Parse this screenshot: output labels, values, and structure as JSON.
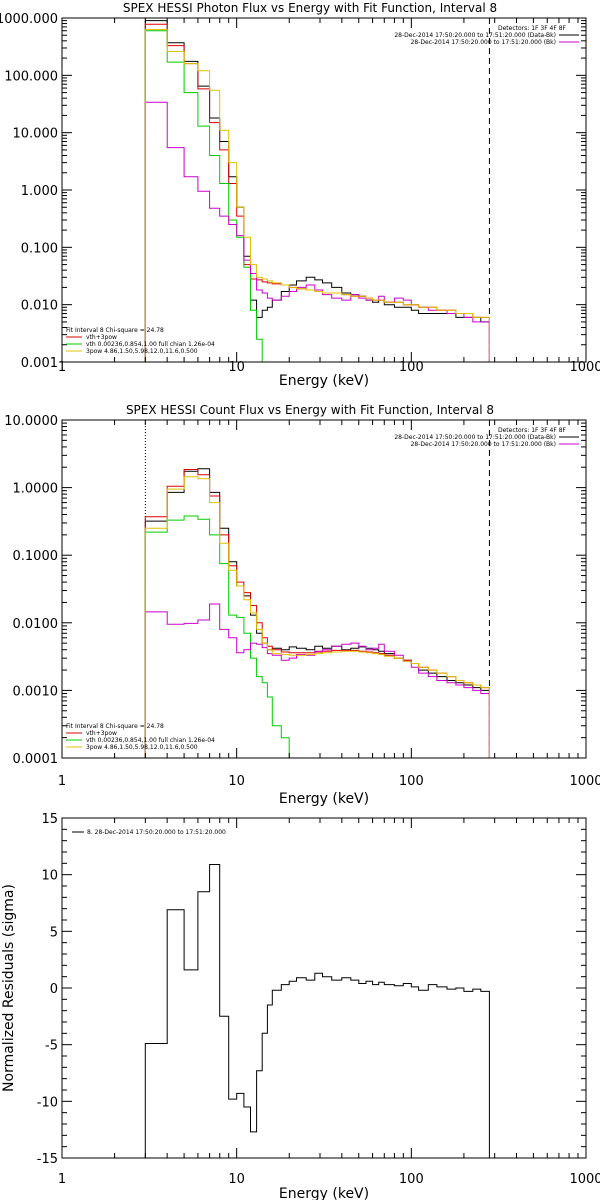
{
  "chart_data": [
    {
      "type": "line",
      "title": "SPEX HESSI Photon Flux vs Energy with Fit Function, Interval 8",
      "xlabel": "Energy (keV)",
      "ylabel": "",
      "xscale": "log",
      "yscale": "log",
      "xlim": [
        1,
        1000
      ],
      "ylim": [
        0.001,
        1000
      ],
      "x_tick_labels": [
        "1",
        "10",
        "100",
        "1000"
      ],
      "y_tick_labels": [
        "0.001",
        "0.010",
        "0.100",
        "1.000",
        "10.000",
        "100.000",
        "1000.000"
      ],
      "vlines": [
        {
          "x": 3,
          "style": "dotted"
        },
        {
          "x": 280,
          "style": "dashed"
        }
      ],
      "legend_top_right": [
        "Detectors: 1F 3F 4F 8F",
        "28-Dec-2014 17:50:20.000 to 17:51:20.000 (Data-Bk)",
        "28-Dec-2014 17:50:20.000 to 17:51:20.000 (Bk)"
      ],
      "legend_bottom_left": [
        "Fit Interval 8   Chi-square = 24.78",
        "vth+3pow",
        "vth 0.00236,0.854,1.00  full chian 1.26e-04",
        "3pow 4.86,1.50,5.98,12.0,11.6,0.500"
      ],
      "edges": [
        3,
        4,
        5,
        6,
        7,
        8,
        9,
        10,
        11,
        12,
        13,
        14,
        15,
        16,
        18,
        20,
        22,
        25,
        28,
        31,
        35,
        40,
        45,
        50,
        55,
        60,
        65,
        70,
        80,
        90,
        100,
        110,
        125,
        140,
        160,
        180,
        200,
        225,
        250,
        280
      ],
      "series": [
        {
          "name": "Data-Bk",
          "color": "#000000",
          "values": [
            900,
            370,
            175,
            65,
            18,
            7,
            1.7,
            0.5,
            0.07,
            0.012,
            0.006,
            0.008,
            0.009,
            0.012,
            0.017,
            0.022,
            0.026,
            0.03,
            0.027,
            0.024,
            0.02,
            0.016,
            0.015,
            0.014,
            0.012,
            0.011,
            0.012,
            0.01,
            0.009,
            0.009,
            0.008,
            0.007,
            0.007,
            0.007,
            0.007,
            0.006,
            0.006,
            0.006,
            0.005
          ]
        },
        {
          "name": "vth+3pow",
          "color": "#dd0000",
          "values": [
            780,
            330,
            160,
            58,
            15,
            5,
            1.3,
            0.35,
            0.05,
            0.028,
            0.027,
            0.025,
            0.024,
            0.023,
            0.022,
            0.02,
            0.019,
            0.018,
            0.017,
            0.016,
            0.016,
            0.015,
            0.014,
            0.014,
            0.013,
            0.012,
            0.012,
            0.011,
            0.011,
            0.01,
            0.01,
            0.009,
            0.009,
            0.008,
            0.008,
            0.007,
            0.007,
            0.006,
            0.006
          ]
        },
        {
          "name": "vth",
          "color": "#00cc00",
          "values": [
            600,
            170,
            50,
            13,
            4,
            1.3,
            0.3,
            0.15,
            0.045,
            0.008,
            0.0025,
            0.0009
          ]
        },
        {
          "name": "Bk",
          "color": "#cc00cc",
          "values": [
            34,
            5.5,
            1.7,
            0.95,
            0.48,
            0.35,
            0.25,
            0.16,
            0.06,
            0.035,
            0.018,
            0.016,
            0.013,
            0.012,
            0.014,
            0.017,
            0.02,
            0.022,
            0.018,
            0.015,
            0.013,
            0.012,
            0.015,
            0.013,
            0.012,
            0.012,
            0.014,
            0.011,
            0.013,
            0.012,
            0.01,
            0.009,
            0.008,
            0.008,
            0.007,
            0.007,
            0.006,
            0.005,
            0.005
          ]
        },
        {
          "name": "3pow",
          "color": "#e0c000",
          "values": [
            630,
            260,
            160,
            120,
            55,
            11,
            3,
            0.5,
            0.15,
            0.05,
            0.03,
            0.028,
            0.026,
            0.024,
            0.022,
            0.02,
            0.019,
            0.018,
            0.017,
            0.016,
            0.016,
            0.015,
            0.014,
            0.014,
            0.013,
            0.012,
            0.012,
            0.011,
            0.011,
            0.01,
            0.01,
            0.009,
            0.009,
            0.008,
            0.008,
            0.007,
            0.007,
            0.006,
            0.006
          ]
        }
      ]
    },
    {
      "type": "line",
      "title": "SPEX HESSI Count Flux vs Energy with Fit Function, Interval 8",
      "xlabel": "Energy (keV)",
      "ylabel": "",
      "xscale": "log",
      "yscale": "log",
      "xlim": [
        1,
        1000
      ],
      "ylim": [
        0.0001,
        10
      ],
      "x_tick_labels": [
        "1",
        "10",
        "100",
        "1000"
      ],
      "y_tick_labels": [
        "0.0001",
        "0.0010",
        "0.0100",
        "0.1000",
        "1.0000",
        "10.0000"
      ],
      "vlines": [
        {
          "x": 3,
          "style": "dotted"
        },
        {
          "x": 280,
          "style": "dashed"
        }
      ],
      "legend_top_right": [
        "Detectors: 1F 3F 4F 8F",
        "28-Dec-2014 17:50:20.000 to 17:51:20.000 (Data-Bk)",
        "28-Dec-2014 17:50:20.000 to 17:51:20.000 (Bk)"
      ],
      "legend_bottom_left": [
        "Fit Interval 8   Chi-square = 24.78",
        "vth+3pow",
        "vth 0.00236,0.854,1.00  full chian 1.26e-04",
        "3pow 4.86,1.50,5.98,12.0,11.6,0.500"
      ],
      "edges": [
        3,
        4,
        5,
        6,
        7,
        8,
        9,
        10,
        11,
        12,
        13,
        14,
        15,
        16,
        18,
        20,
        22,
        25,
        28,
        31,
        35,
        40,
        45,
        50,
        55,
        60,
        65,
        70,
        80,
        90,
        100,
        110,
        125,
        140,
        160,
        180,
        200,
        225,
        250,
        280
      ],
      "series": [
        {
          "name": "Data-Bk",
          "color": "#000000",
          "values": [
            0.32,
            0.85,
            1.75,
            1.9,
            0.85,
            0.25,
            0.08,
            0.035,
            0.025,
            0.013,
            0.007,
            0.005,
            0.004,
            0.0042,
            0.004,
            0.0044,
            0.0042,
            0.004,
            0.0045,
            0.0042,
            0.0045,
            0.004,
            0.0042,
            0.0044,
            0.0042,
            0.004,
            0.0038,
            0.0035,
            0.003,
            0.0028,
            0.0025,
            0.002,
            0.0018,
            0.0016,
            0.0014,
            0.0013,
            0.0012,
            0.0011,
            0.001
          ]
        },
        {
          "name": "vth+3pow",
          "color": "#dd0000",
          "values": [
            0.37,
            1.05,
            1.85,
            1.55,
            0.75,
            0.2,
            0.07,
            0.04,
            0.028,
            0.018,
            0.01,
            0.006,
            0.0045,
            0.004,
            0.0037,
            0.0036,
            0.0036,
            0.0036,
            0.0037,
            0.0038,
            0.0039,
            0.0039,
            0.0039,
            0.0038,
            0.0037,
            0.0036,
            0.0035,
            0.0033,
            0.003,
            0.0028,
            0.0025,
            0.0022,
            0.002,
            0.0018,
            0.0016,
            0.0014,
            0.0013,
            0.0012,
            0.0011
          ]
        },
        {
          "name": "vth",
          "color": "#00cc00",
          "values": [
            0.22,
            0.33,
            0.38,
            0.34,
            0.2,
            0.075,
            0.013,
            0.012,
            0.007,
            0.003,
            0.0016,
            0.0013,
            0.0008,
            0.0003,
            0.0002,
            0.0001
          ]
        },
        {
          "name": "Bk",
          "color": "#cc00cc",
          "values": [
            0.0145,
            0.0095,
            0.0098,
            0.011,
            0.019,
            0.008,
            0.006,
            0.0036,
            0.004,
            0.005,
            0.0048,
            0.0043,
            0.0035,
            0.0033,
            0.0028,
            0.003,
            0.0034,
            0.0033,
            0.0038,
            0.004,
            0.0045,
            0.0048,
            0.005,
            0.0045,
            0.004,
            0.0042,
            0.0048,
            0.0038,
            0.0033,
            0.0027,
            0.0022,
            0.0018,
            0.0016,
            0.0014,
            0.0013,
            0.0012,
            0.0011,
            0.001,
            0.0009
          ]
        },
        {
          "name": "3pow",
          "color": "#e0c000",
          "values": [
            0.25,
            0.95,
            1.45,
            1.35,
            0.6,
            0.15,
            0.06,
            0.035,
            0.022,
            0.014,
            0.008,
            0.005,
            0.004,
            0.0035,
            0.0034,
            0.0033,
            0.0033,
            0.0034,
            0.0035,
            0.0036,
            0.0037,
            0.0038,
            0.0038,
            0.0037,
            0.0036,
            0.0035,
            0.0034,
            0.0032,
            0.003,
            0.0027,
            0.0025,
            0.0022,
            0.002,
            0.0018,
            0.0016,
            0.0014,
            0.0013,
            0.0012,
            0.0011
          ]
        }
      ]
    },
    {
      "type": "line",
      "title": "",
      "xlabel": "Energy (keV)",
      "ylabel": "Normalized Residuals (sigma)",
      "xscale": "log",
      "yscale": "linear",
      "xlim": [
        1,
        1000
      ],
      "ylim": [
        -15,
        15
      ],
      "x_tick_labels": [
        "1",
        "10",
        "100",
        "1000"
      ],
      "y_tick_labels": [
        "-15",
        "-10",
        "-5",
        "0",
        "5",
        "10",
        "15"
      ],
      "legend": [
        "8. 28-Dec-2014 17:50:20.000 to 17:51:20.000"
      ],
      "edges": [
        3,
        4,
        5,
        6,
        7,
        8,
        9,
        10,
        11,
        12,
        13,
        14,
        15,
        16,
        18,
        20,
        22,
        25,
        28,
        31,
        35,
        40,
        45,
        50,
        55,
        60,
        65,
        70,
        80,
        90,
        100,
        110,
        125,
        140,
        160,
        180,
        200,
        225,
        250,
        280
      ],
      "series": [
        {
          "name": "8. 28-Dec-2014 17:50:20.000 to 17:51:20.000",
          "color": "#000000",
          "values": [
            -4.9,
            6.9,
            1.6,
            8.5,
            10.9,
            -2.5,
            -9.8,
            -9.3,
            -10.5,
            -12.7,
            -7.3,
            -4.0,
            -1.5,
            -0.2,
            0.3,
            0.6,
            0.9,
            0.7,
            1.3,
            1.0,
            0.7,
            0.9,
            0.7,
            0.4,
            0.6,
            0.3,
            0.5,
            0.3,
            0.2,
            0.4,
            0.1,
            -0.2,
            0.3,
            0.1,
            -0.1,
            0.0,
            -0.3,
            -0.1,
            -0.3
          ]
        }
      ]
    }
  ]
}
